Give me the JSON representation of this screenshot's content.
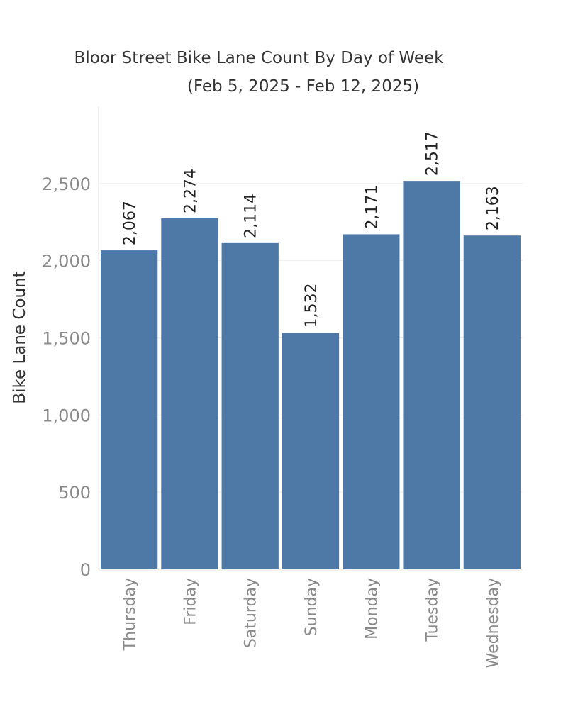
{
  "chart_data": {
    "type": "bar",
    "title": "Bloor Street Bike Lane Count By Day of Week",
    "subtitle": "(Feb 5, 2025 - Feb 12, 2025)",
    "xlabel": "",
    "ylabel": "Bike Lane Count",
    "categories": [
      "Thursday",
      "Friday",
      "Saturday",
      "Sunday",
      "Monday",
      "Tuesday",
      "Wednesday"
    ],
    "values": [
      2067,
      2274,
      2114,
      1532,
      2171,
      2517,
      2163
    ],
    "data_labels": [
      "2,067",
      "2,274",
      "2,114",
      "1,532",
      "2,171",
      "2,517",
      "2,163"
    ],
    "ylim": [
      0,
      3000
    ],
    "yticks": [
      0,
      500,
      1000,
      1500,
      2000,
      2500
    ],
    "ytick_labels": [
      "0",
      "500",
      "1,000",
      "1,500",
      "2,000",
      "2,500"
    ],
    "grid": true,
    "bar_color": "#4e79a7"
  }
}
